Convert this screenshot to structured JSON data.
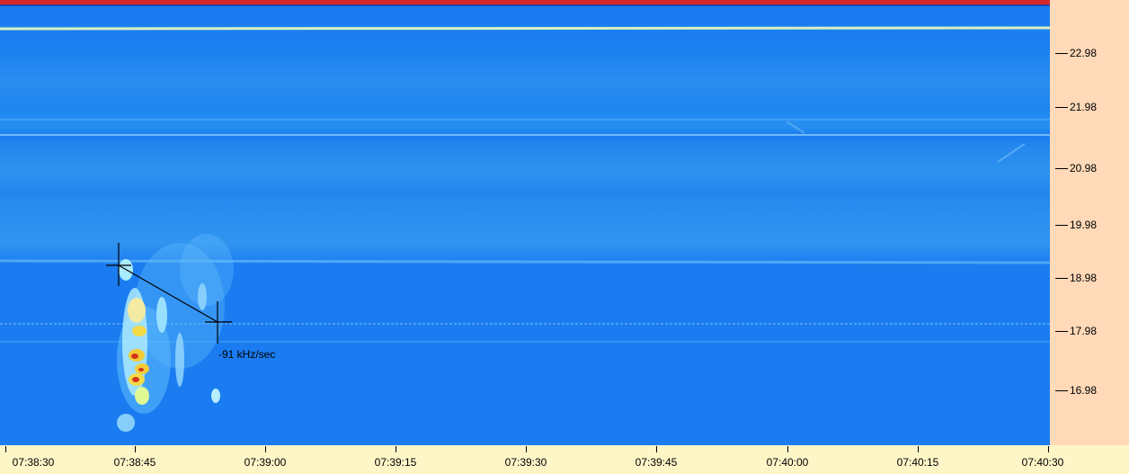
{
  "spectrogram": {
    "y_axis": {
      "unit": "kHz",
      "ticks": [
        "22.98",
        "21.98",
        "20.98",
        "19.98",
        "18.98",
        "17.98",
        "16.98"
      ]
    },
    "x_axis": {
      "ticks": [
        "07:38:30",
        "07:38:45",
        "07:39:00",
        "07:39:15",
        "07:39:30",
        "07:39:45",
        "07:40:00",
        "07:40:15",
        "07:40:30"
      ]
    },
    "measurement": {
      "label": "-91 kHz/sec"
    }
  },
  "colors": {
    "background": "#1a7cf0",
    "signal_hot": "#e03010",
    "signal_warm": "#ffe040",
    "signal_cool": "#a8e8ff",
    "axis_panel": "#ffd9b8",
    "time_panel": "#fff6c8"
  }
}
